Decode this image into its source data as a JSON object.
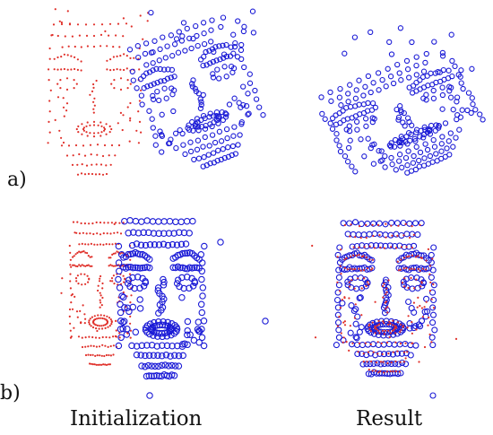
{
  "figure": {
    "columns": [
      "Initialization",
      "Result"
    ],
    "rows": [
      "a)",
      "b)"
    ],
    "colors": {
      "model_points": "#e0302a",
      "target_points": "#1a1ad6"
    }
  }
}
